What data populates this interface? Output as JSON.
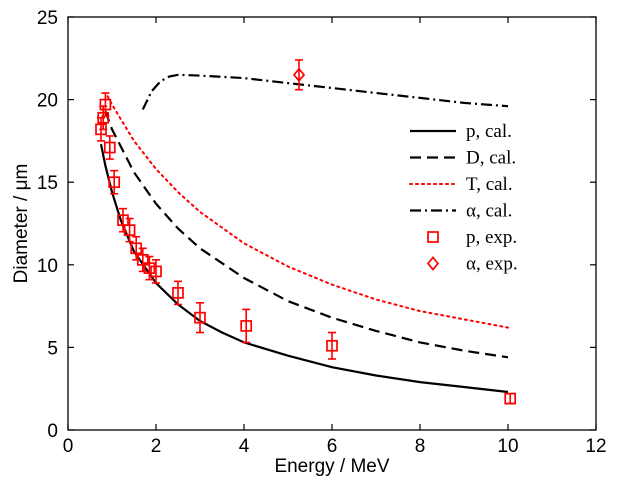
{
  "chart_data": {
    "type": "line",
    "xlabel": "Energy / MeV",
    "ylabel": "Diameter / μm",
    "xlim": [
      0,
      12
    ],
    "ylim": [
      0,
      25
    ],
    "xticks": [
      0,
      2,
      4,
      6,
      8,
      10,
      12
    ],
    "yticks": [
      0,
      5,
      10,
      15,
      20,
      25
    ],
    "grid": false,
    "legend_position": "right",
    "series": [
      {
        "name": "p, cal.",
        "kind": "line",
        "dash": "solid",
        "color": "#000000",
        "x": [
          0.75,
          0.85,
          1.0,
          1.2,
          1.5,
          2.0,
          2.5,
          3.0,
          3.5,
          4.0,
          5.0,
          6.0,
          7.0,
          8.0,
          9.0,
          10.0
        ],
        "y": [
          17.3,
          16.0,
          14.4,
          12.7,
          10.8,
          8.9,
          7.6,
          6.6,
          5.9,
          5.3,
          4.5,
          3.8,
          3.3,
          2.9,
          2.6,
          2.3
        ]
      },
      {
        "name": "D, cal.",
        "kind": "line",
        "dash": "dashed",
        "color": "#000000",
        "x": [
          0.85,
          1.0,
          1.5,
          2.0,
          2.5,
          3.0,
          4.0,
          5.0,
          6.0,
          7.0,
          8.0,
          9.0,
          10.0
        ],
        "y": [
          19.3,
          18.2,
          15.6,
          13.7,
          12.2,
          11.0,
          9.2,
          7.8,
          6.8,
          6.0,
          5.3,
          4.8,
          4.4
        ]
      },
      {
        "name": "T, cal.",
        "kind": "line",
        "dash": "dotted",
        "color": "#ff0000",
        "x": [
          0.9,
          1.0,
          1.5,
          2.0,
          2.5,
          3.0,
          4.0,
          5.0,
          6.0,
          7.0,
          8.0,
          9.0,
          10.0
        ],
        "y": [
          20.2,
          19.7,
          17.5,
          15.8,
          14.4,
          13.2,
          11.3,
          9.9,
          8.8,
          7.9,
          7.2,
          6.7,
          6.2
        ]
      },
      {
        "name": "α, cal.",
        "kind": "line",
        "dash": "dashdot",
        "color": "#000000",
        "x": [
          1.7,
          1.9,
          2.1,
          2.3,
          2.5,
          3.0,
          4.0,
          5.0,
          6.0,
          7.0,
          8.0,
          9.0,
          10.0
        ],
        "y": [
          19.4,
          20.5,
          21.1,
          21.4,
          21.5,
          21.45,
          21.3,
          21.0,
          20.7,
          20.4,
          20.1,
          19.8,
          19.6
        ]
      },
      {
        "name": "p, exp.",
        "kind": "scatter",
        "marker": "square",
        "color": "#ff0000",
        "x": [
          0.75,
          0.8,
          0.85,
          0.95,
          1.05,
          1.25,
          1.4,
          1.55,
          1.7,
          1.85,
          2.0,
          2.5,
          3.0,
          4.05,
          6.0,
          10.05
        ],
        "y": [
          18.2,
          18.9,
          19.7,
          17.1,
          15.0,
          12.7,
          12.1,
          11.0,
          10.3,
          9.8,
          9.6,
          8.3,
          6.8,
          6.3,
          5.1,
          1.9
        ],
        "err": [
          0.7,
          0.7,
          0.7,
          0.7,
          0.7,
          0.7,
          0.7,
          0.7,
          0.7,
          0.7,
          0.7,
          0.7,
          0.9,
          1.0,
          0.8,
          0.3
        ]
      },
      {
        "name": "α, exp.",
        "kind": "scatter",
        "marker": "diamond",
        "color": "#ff0000",
        "x": [
          5.25
        ],
        "y": [
          21.5
        ],
        "err": [
          0.9
        ]
      }
    ]
  }
}
